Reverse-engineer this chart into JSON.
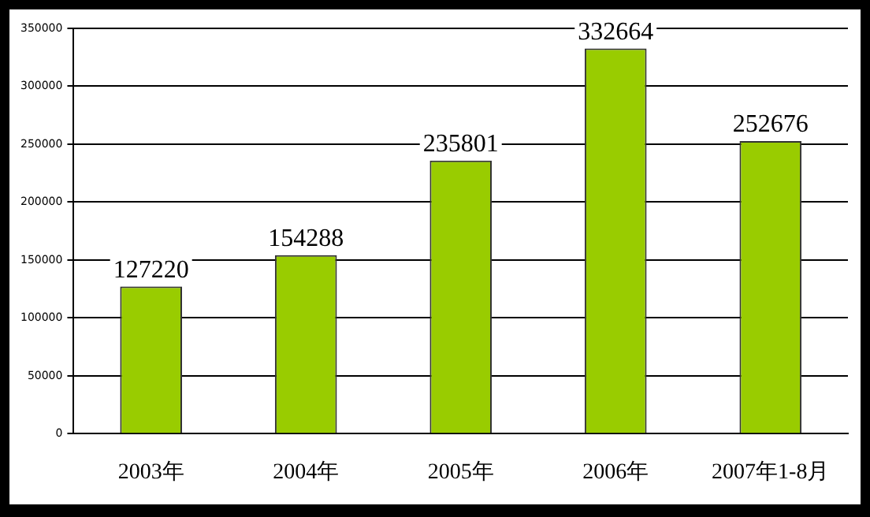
{
  "chart_data": {
    "type": "bar",
    "categories": [
      "2003年",
      "2004年",
      "2005年",
      "2006年",
      "2007年1-8月"
    ],
    "values": [
      127220,
      154288,
      235801,
      332664,
      252676
    ],
    "color": "#99cc00",
    "ylim": [
      0,
      350000
    ],
    "yticks": [
      0,
      50000,
      100000,
      150000,
      200000,
      250000,
      300000,
      350000
    ],
    "grid": "y",
    "data_labels": true
  }
}
